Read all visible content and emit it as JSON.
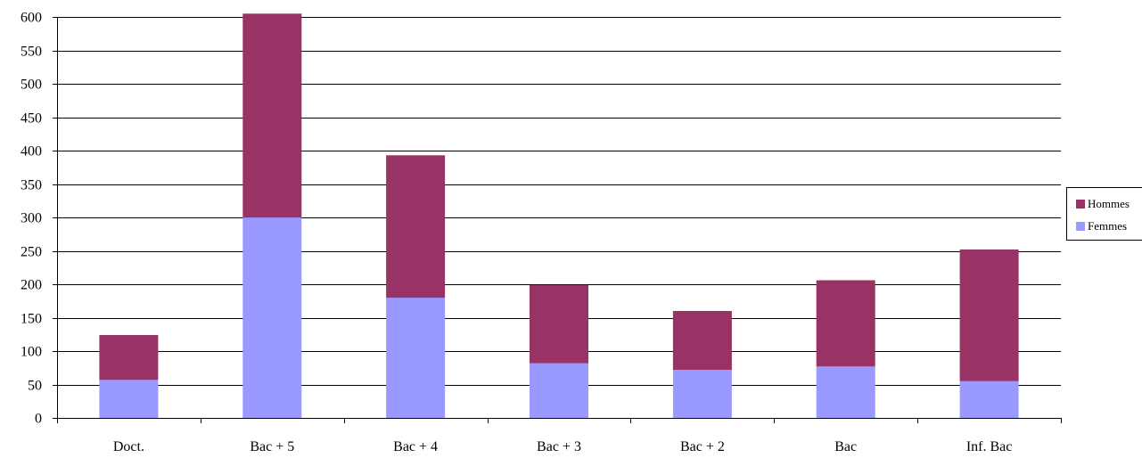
{
  "chart_data": {
    "type": "bar",
    "stacked": true,
    "title": "",
    "xlabel": "",
    "ylabel": "",
    "categories": [
      "Doct.",
      "Bac + 5",
      "Bac + 4",
      "Bac + 3",
      "Bac + 2",
      "Bac",
      "Inf. Bac"
    ],
    "series": [
      {
        "name": "Femmes",
        "color": "#9999ff",
        "values": [
          57,
          300,
          180,
          82,
          72,
          77,
          55
        ]
      },
      {
        "name": "Hommes",
        "color": "#993366",
        "values": [
          67,
          305,
          213,
          117,
          88,
          129,
          197
        ]
      }
    ],
    "ylim": [
      0,
      600
    ],
    "yticks": [
      0,
      50,
      100,
      150,
      200,
      250,
      300,
      350,
      400,
      450,
      500,
      550,
      600
    ],
    "grid": true,
    "legend": {
      "position": "right",
      "order": [
        "Hommes",
        "Femmes"
      ]
    }
  }
}
